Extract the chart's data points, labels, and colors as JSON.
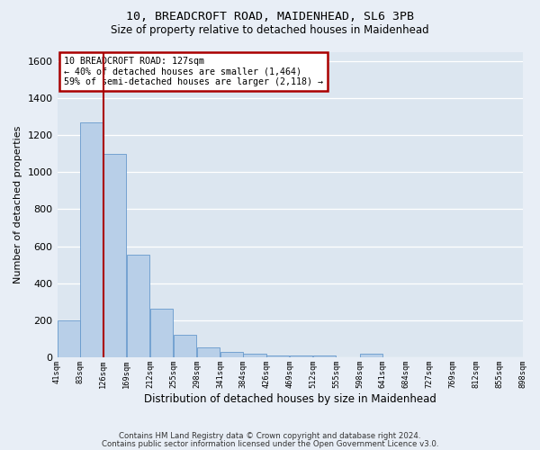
{
  "title1": "10, BREADCROFT ROAD, MAIDENHEAD, SL6 3PB",
  "title2": "Size of property relative to detached houses in Maidenhead",
  "xlabel": "Distribution of detached houses by size in Maidenhead",
  "ylabel": "Number of detached properties",
  "bar_values": [
    200,
    1270,
    1100,
    555,
    265,
    120,
    55,
    32,
    22,
    12,
    12,
    12,
    0,
    18,
    0,
    0,
    0,
    0,
    0,
    0
  ],
  "bin_edges": [
    41,
    83,
    126,
    169,
    212,
    255,
    298,
    341,
    384,
    426,
    469,
    512,
    555,
    598,
    641,
    684,
    727,
    769,
    812,
    855,
    898
  ],
  "bar_color": "#b8cfe8",
  "bar_edge_color": "#6699cc",
  "property_size": 127,
  "vline_color": "#aa0000",
  "annotation_line1": "10 BREADCROFT ROAD: 127sqm",
  "annotation_line2": "← 40% of detached houses are smaller (1,464)",
  "annotation_line3": "59% of semi-detached houses are larger (2,118) →",
  "annotation_box_color": "#aa0000",
  "ylim": [
    0,
    1650
  ],
  "yticks": [
    0,
    200,
    400,
    600,
    800,
    1000,
    1200,
    1400,
    1600
  ],
  "bg_color": "#dce6f0",
  "fig_bg_color": "#e8eef6",
  "grid_color": "#ffffff",
  "footer1": "Contains HM Land Registry data © Crown copyright and database right 2024.",
  "footer2": "Contains public sector information licensed under the Open Government Licence v3.0."
}
